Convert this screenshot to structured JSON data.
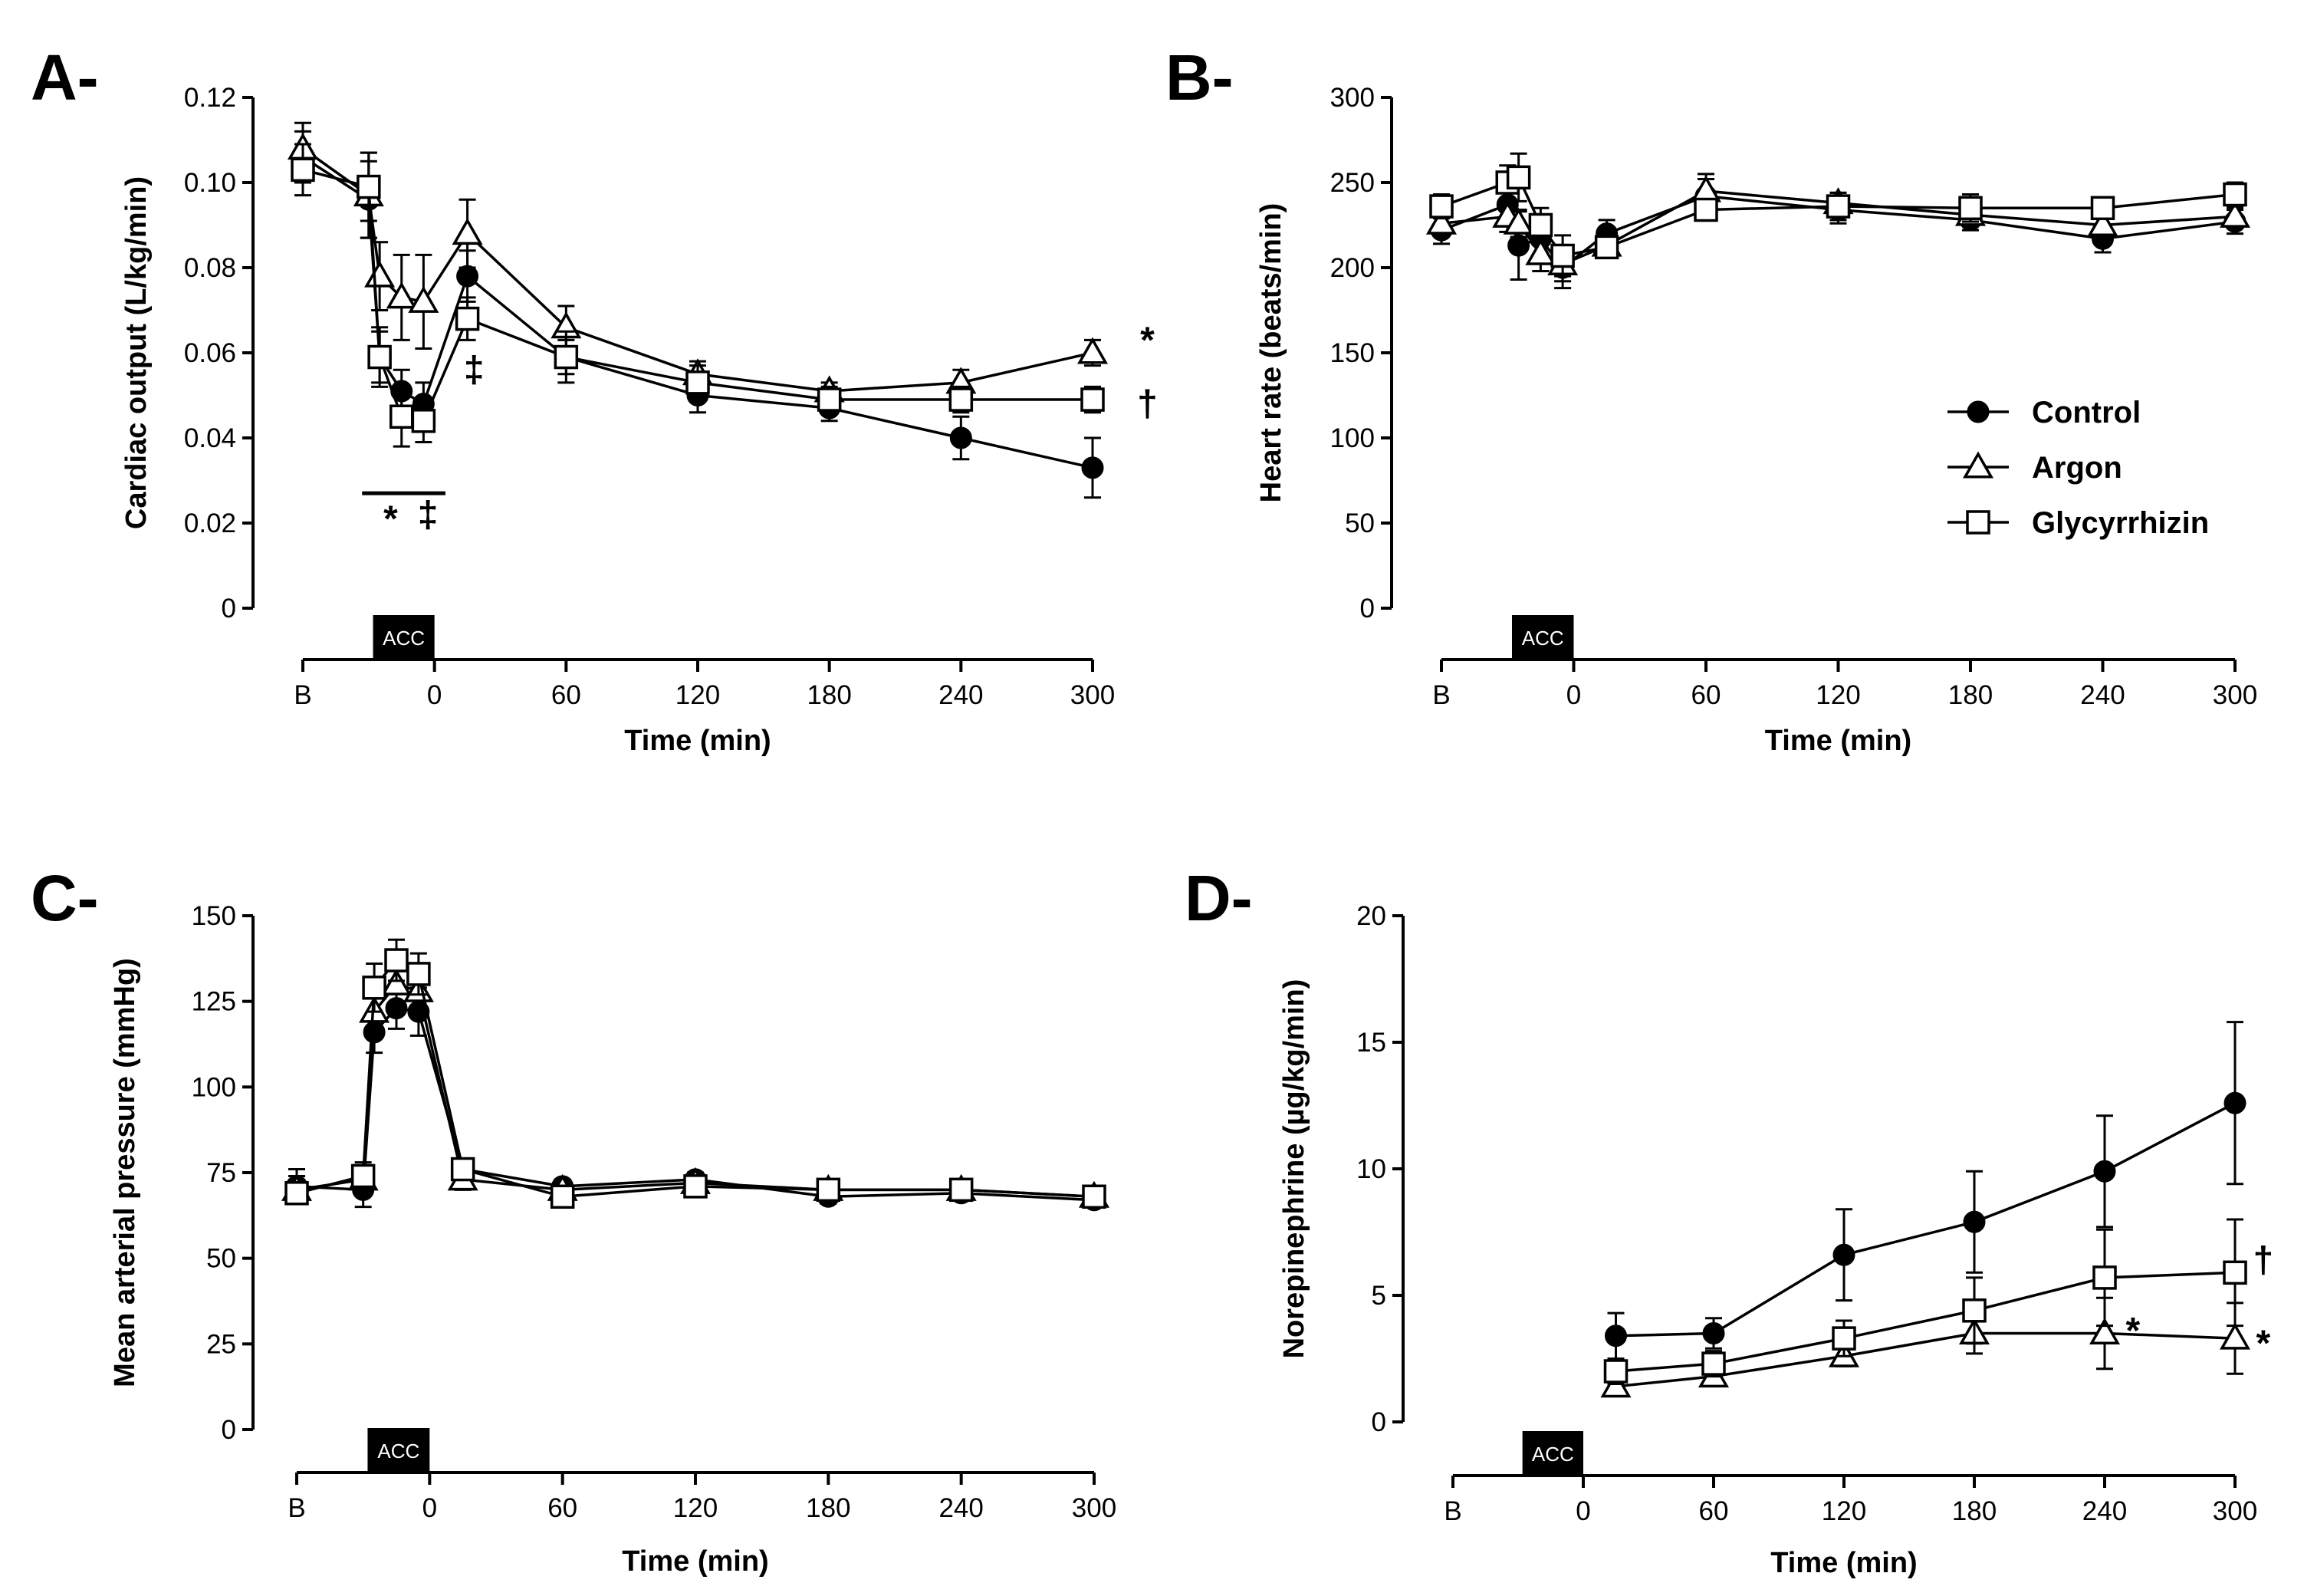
{
  "legend": [
    {
      "name": "Control",
      "marker": "circle-filled"
    },
    {
      "name": "Argon",
      "marker": "triangle-open"
    },
    {
      "name": "Glycyrrhizin",
      "marker": "square-open"
    }
  ],
  "acc_label": "ACC",
  "chart_data": [
    {
      "panel": "A-",
      "type": "line",
      "ylabel": "Cardiac output  (L/kg/min)",
      "xlabel": "Time (min)",
      "ylim": [
        0,
        0.12
      ],
      "yticks": [
        0,
        0.02,
        0.04,
        0.06,
        0.08,
        0.1,
        0.12
      ],
      "ytick_labels": [
        "0",
        "0.02",
        "0.04",
        "0.06",
        "0.08",
        "0.10",
        "0.12"
      ],
      "xlim": [
        -60,
        300
      ],
      "xticks": [
        -60,
        0,
        60,
        120,
        180,
        240,
        300
      ],
      "xtick_labels": [
        "B",
        "0",
        "60",
        "120",
        "180",
        "240",
        "300"
      ],
      "acc_window": [
        -28,
        0
      ],
      "series": [
        {
          "name": "Control",
          "points": [
            {
              "x": -60,
              "y": 0.106,
              "err": 0.006
            },
            {
              "x": -30,
              "y": 0.096,
              "err": 0.009
            },
            {
              "x": -25,
              "y": 0.059,
              "err": 0.006
            },
            {
              "x": -15,
              "y": 0.051,
              "err": 0.005
            },
            {
              "x": -5,
              "y": 0.048,
              "err": 0.005
            },
            {
              "x": 15,
              "y": 0.078,
              "err": 0.006
            },
            {
              "x": 60,
              "y": 0.059,
              "err": 0.004
            },
            {
              "x": 120,
              "y": 0.05,
              "err": 0.004
            },
            {
              "x": 180,
              "y": 0.047,
              "err": 0.003
            },
            {
              "x": 240,
              "y": 0.04,
              "err": 0.005
            },
            {
              "x": 300,
              "y": 0.033,
              "err": 0.007
            }
          ]
        },
        {
          "name": "Argon",
          "points": [
            {
              "x": -60,
              "y": 0.108,
              "err": 0.006
            },
            {
              "x": -30,
              "y": 0.097,
              "err": 0.01
            },
            {
              "x": -25,
              "y": 0.078,
              "err": 0.008
            },
            {
              "x": -15,
              "y": 0.073,
              "err": 0.01
            },
            {
              "x": -5,
              "y": 0.072,
              "err": 0.011
            },
            {
              "x": 15,
              "y": 0.088,
              "err": 0.008
            },
            {
              "x": 60,
              "y": 0.066,
              "err": 0.005
            },
            {
              "x": 120,
              "y": 0.055,
              "err": 0.003
            },
            {
              "x": 180,
              "y": 0.051,
              "err": 0.002
            },
            {
              "x": 240,
              "y": 0.053,
              "err": 0.003
            },
            {
              "x": 300,
              "y": 0.06,
              "err": 0.003
            }
          ]
        },
        {
          "name": "Glycyrrhizin",
          "points": [
            {
              "x": -60,
              "y": 0.103,
              "err": 0.006
            },
            {
              "x": -30,
              "y": 0.099,
              "err": 0.008
            },
            {
              "x": -25,
              "y": 0.059,
              "err": 0.007
            },
            {
              "x": -15,
              "y": 0.045,
              "err": 0.007
            },
            {
              "x": -5,
              "y": 0.044,
              "err": 0.005
            },
            {
              "x": 15,
              "y": 0.068,
              "err": 0.005
            },
            {
              "x": 60,
              "y": 0.059,
              "err": 0.006
            },
            {
              "x": 120,
              "y": 0.053,
              "err": 0.004
            },
            {
              "x": 180,
              "y": 0.049,
              "err": 0.003
            },
            {
              "x": 240,
              "y": 0.049,
              "err": 0.003
            },
            {
              "x": 300,
              "y": 0.049,
              "err": 0.003
            }
          ]
        }
      ],
      "significance_bar": [
        -33,
        5
      ],
      "annotations": [
        {
          "text": "*",
          "x": 325,
          "y": 0.063
        },
        {
          "text": "†",
          "x": 325,
          "y": 0.048
        },
        {
          "text": "‡",
          "x": 18,
          "y": 0.056
        },
        {
          "text": "*",
          "x": -20,
          "y": 0.021
        },
        {
          "text": "‡",
          "x": -3,
          "y": 0.022
        }
      ]
    },
    {
      "panel": "B-",
      "type": "line",
      "ylabel": "Heart rate (beats/min)",
      "xlabel": "Time (min)",
      "ylim": [
        0,
        300
      ],
      "yticks": [
        0,
        50,
        100,
        150,
        200,
        250,
        300
      ],
      "ytick_labels": [
        "0",
        "50",
        "100",
        "150",
        "200",
        "250",
        "300"
      ],
      "xlim": [
        -60,
        300
      ],
      "xticks": [
        -60,
        0,
        60,
        120,
        180,
        240,
        300
      ],
      "xtick_labels": [
        "B",
        "0",
        "60",
        "120",
        "180",
        "240",
        "300"
      ],
      "acc_window": [
        -28,
        0
      ],
      "series": [
        {
          "name": "Control",
          "points": [
            {
              "x": -60,
              "y": 222,
              "err": 8
            },
            {
              "x": -30,
              "y": 237,
              "err": 10
            },
            {
              "x": -25,
              "y": 213,
              "err": 20
            },
            {
              "x": -15,
              "y": 217,
              "err": 10
            },
            {
              "x": -5,
              "y": 200,
              "err": 12
            },
            {
              "x": 15,
              "y": 220,
              "err": 8
            },
            {
              "x": 60,
              "y": 242,
              "err": 10
            },
            {
              "x": 120,
              "y": 234,
              "err": 8
            },
            {
              "x": 180,
              "y": 228,
              "err": 6
            },
            {
              "x": 240,
              "y": 217,
              "err": 8
            },
            {
              "x": 300,
              "y": 227,
              "err": 7
            }
          ]
        },
        {
          "name": "Argon",
          "points": [
            {
              "x": -60,
              "y": 226,
              "err": 7
            },
            {
              "x": -30,
              "y": 230,
              "err": 9
            },
            {
              "x": -25,
              "y": 226,
              "err": 8
            },
            {
              "x": -15,
              "y": 208,
              "err": 10
            },
            {
              "x": -5,
              "y": 202,
              "err": 10
            },
            {
              "x": 15,
              "y": 213,
              "err": 6
            },
            {
              "x": 60,
              "y": 245,
              "err": 10
            },
            {
              "x": 120,
              "y": 238,
              "err": 6
            },
            {
              "x": 180,
              "y": 231,
              "err": 5
            },
            {
              "x": 240,
              "y": 225,
              "err": 6
            },
            {
              "x": 300,
              "y": 230,
              "err": 5
            }
          ]
        },
        {
          "name": "Glycyrrhizin",
          "points": [
            {
              "x": -60,
              "y": 236,
              "err": 7
            },
            {
              "x": -30,
              "y": 250,
              "err": 10
            },
            {
              "x": -25,
              "y": 253,
              "err": 14
            },
            {
              "x": -15,
              "y": 225,
              "err": 10
            },
            {
              "x": -5,
              "y": 207,
              "err": 12
            },
            {
              "x": 15,
              "y": 212,
              "err": 6
            },
            {
              "x": 60,
              "y": 234,
              "err": 6
            },
            {
              "x": 120,
              "y": 236,
              "err": 8
            },
            {
              "x": 180,
              "y": 235,
              "err": 8
            },
            {
              "x": 240,
              "y": 235,
              "err": 6
            },
            {
              "x": 300,
              "y": 243,
              "err": 7
            }
          ]
        }
      ],
      "annotations": []
    },
    {
      "panel": "C-",
      "type": "line",
      "ylabel": "Mean arterial pressure (mmHg)",
      "xlabel": "Time (min)",
      "ylim": [
        0,
        150
      ],
      "yticks": [
        0,
        25,
        50,
        75,
        100,
        125,
        150
      ],
      "ytick_labels": [
        "0",
        "25",
        "50",
        "75",
        "100",
        "125",
        "150"
      ],
      "xlim": [
        -60,
        300
      ],
      "xticks": [
        -60,
        0,
        60,
        120,
        180,
        240,
        300
      ],
      "xtick_labels": [
        "B",
        "0",
        "60",
        "120",
        "180",
        "240",
        "300"
      ],
      "acc_window": [
        -28,
        0
      ],
      "series": [
        {
          "name": "Control",
          "points": [
            {
              "x": -60,
              "y": 71,
              "err": 5
            },
            {
              "x": -30,
              "y": 70,
              "err": 5
            },
            {
              "x": -25,
              "y": 116,
              "err": 6
            },
            {
              "x": -15,
              "y": 123,
              "err": 6
            },
            {
              "x": -5,
              "y": 122,
              "err": 7
            },
            {
              "x": 15,
              "y": 76,
              "err": 3
            },
            {
              "x": 60,
              "y": 71,
              "err": 2
            },
            {
              "x": 120,
              "y": 73,
              "err": 2
            },
            {
              "x": 180,
              "y": 68,
              "err": 2
            },
            {
              "x": 240,
              "y": 69,
              "err": 2
            },
            {
              "x": 300,
              "y": 67,
              "err": 2
            }
          ]
        },
        {
          "name": "Argon",
          "points": [
            {
              "x": -60,
              "y": 70,
              "err": 4
            },
            {
              "x": -30,
              "y": 73,
              "err": 4
            },
            {
              "x": -25,
              "y": 122,
              "err": 6
            },
            {
              "x": -15,
              "y": 130,
              "err": 6
            },
            {
              "x": -5,
              "y": 128,
              "err": 6
            },
            {
              "x": 15,
              "y": 73,
              "err": 3
            },
            {
              "x": 60,
              "y": 70,
              "err": 2
            },
            {
              "x": 120,
              "y": 72,
              "err": 2
            },
            {
              "x": 180,
              "y": 70,
              "err": 2
            },
            {
              "x": 240,
              "y": 70,
              "err": 2
            },
            {
              "x": 300,
              "y": 68,
              "err": 2
            }
          ]
        },
        {
          "name": "Glycyrrhizin",
          "points": [
            {
              "x": -60,
              "y": 69,
              "err": 3
            },
            {
              "x": -30,
              "y": 74,
              "err": 4
            },
            {
              "x": -25,
              "y": 129,
              "err": 7
            },
            {
              "x": -15,
              "y": 137,
              "err": 6
            },
            {
              "x": -5,
              "y": 133,
              "err": 6
            },
            {
              "x": 15,
              "y": 76,
              "err": 3
            },
            {
              "x": 60,
              "y": 68,
              "err": 2
            },
            {
              "x": 120,
              "y": 71,
              "err": 2
            },
            {
              "x": 180,
              "y": 70,
              "err": 2
            },
            {
              "x": 240,
              "y": 70,
              "err": 2
            },
            {
              "x": 300,
              "y": 68,
              "err": 2
            }
          ]
        }
      ],
      "annotations": []
    },
    {
      "panel": "D-",
      "type": "line",
      "ylabel": "Norepinephrine (µg/kg/min)",
      "xlabel": "Time (min)",
      "ylim": [
        0,
        20
      ],
      "yticks": [
        0,
        5,
        10,
        15,
        20
      ],
      "ytick_labels": [
        "0",
        "5",
        "10",
        "15",
        "20"
      ],
      "xlim": [
        -60,
        300
      ],
      "xticks": [
        -60,
        0,
        60,
        120,
        180,
        240,
        300
      ],
      "xtick_labels": [
        "B",
        "0",
        "60",
        "120",
        "180",
        "240",
        "300"
      ],
      "acc_window": [
        -28,
        0
      ],
      "series": [
        {
          "name": "Control",
          "points": [
            {
              "x": 15,
              "y": 3.4,
              "err": 0.9
            },
            {
              "x": 60,
              "y": 3.5,
              "err": 0.6
            },
            {
              "x": 120,
              "y": 6.6,
              "err": 1.8
            },
            {
              "x": 180,
              "y": 7.9,
              "err": 2.0
            },
            {
              "x": 240,
              "y": 9.9,
              "err": 2.2
            },
            {
              "x": 300,
              "y": 12.6,
              "err": 3.2
            }
          ]
        },
        {
          "name": "Argon",
          "points": [
            {
              "x": 15,
              "y": 1.4,
              "err": 0.3
            },
            {
              "x": 60,
              "y": 1.8,
              "err": 0.3
            },
            {
              "x": 120,
              "y": 2.6,
              "err": 0.4
            },
            {
              "x": 180,
              "y": 3.5,
              "err": 0.8
            },
            {
              "x": 240,
              "y": 3.5,
              "err": 1.4
            },
            {
              "x": 300,
              "y": 3.3,
              "err": 1.4
            }
          ]
        },
        {
          "name": "Glycyrrhizin",
          "points": [
            {
              "x": 15,
              "y": 2.0,
              "err": 0.5
            },
            {
              "x": 60,
              "y": 2.3,
              "err": 0.5
            },
            {
              "x": 120,
              "y": 3.3,
              "err": 0.7
            },
            {
              "x": 180,
              "y": 4.4,
              "err": 1.3
            },
            {
              "x": 240,
              "y": 5.7,
              "err": 1.9
            },
            {
              "x": 300,
              "y": 5.9,
              "err": 2.1
            }
          ]
        }
      ],
      "annotations": [
        {
          "text": "†",
          "x": 313,
          "y": 6.4
        },
        {
          "text": "*",
          "x": 253,
          "y": 3.6
        },
        {
          "text": "*",
          "x": 313,
          "y": 3.1
        }
      ]
    }
  ]
}
